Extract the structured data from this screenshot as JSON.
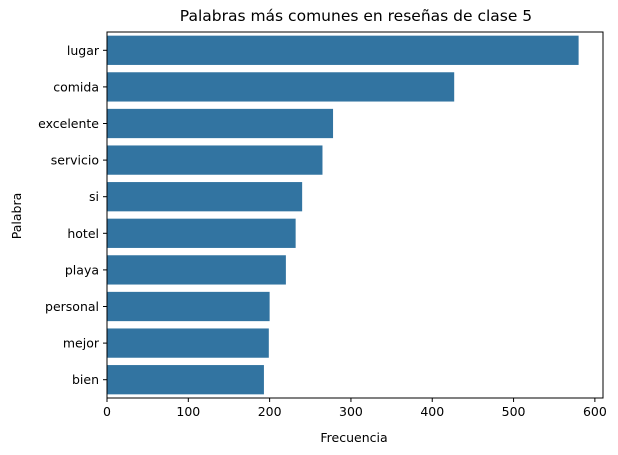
{
  "chart_data": {
    "type": "bar",
    "orientation": "horizontal",
    "title": "Palabras más comunes en reseñas de clase 5",
    "xlabel": "Frecuencia",
    "ylabel": "Palabra",
    "categories": [
      "lugar",
      "comida",
      "excelente",
      "servicio",
      "si",
      "hotel",
      "playa",
      "personal",
      "mejor",
      "bien"
    ],
    "values": [
      580,
      427,
      278,
      265,
      240,
      232,
      220,
      200,
      199,
      193
    ],
    "xlim": [
      0,
      610
    ],
    "xticks": [
      0,
      100,
      200,
      300,
      400,
      500,
      600
    ],
    "grid": false,
    "bar_color": "#3274a1"
  }
}
